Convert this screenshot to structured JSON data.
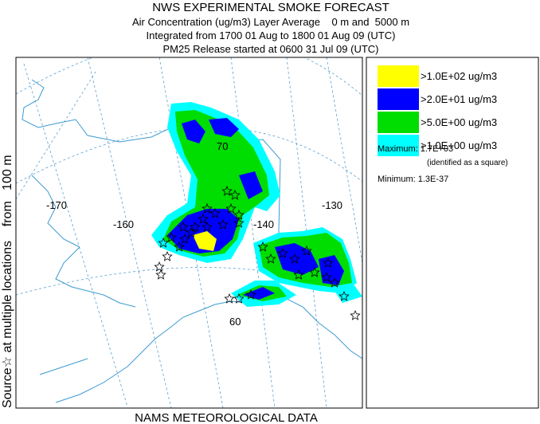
{
  "header": {
    "title": "NWS EXPERIMENTAL SMOKE FORECAST",
    "lines": [
      "Air Concentration (ug/m3) Layer Average    0 m and  5000 m",
      "Integrated from 1700 01 Aug to 1800 01 Aug 09 (UTC)",
      "PM25 Release started at 0600 31 Jul 09 (UTC)"
    ]
  },
  "side_label": "Source☆ at multiple locations    from   100 m",
  "footer": "NAMS METEOROLOGICAL DATA",
  "map": {
    "labels": [
      "-170",
      "-160",
      "-140",
      "-130",
      "70",
      "60"
    ]
  },
  "legend": {
    "items": [
      {
        "label": ">1.0E+02 ug/m3",
        "color": "#ffff00"
      },
      {
        "label": ">2.0E+01 ug/m3",
        "color": "#0000ff"
      },
      {
        "label": ">5.0E+00 ug/m3",
        "color": "#00dd00"
      },
      {
        "label": ">1.0E+00 ug/m3",
        "color": "#00ffff"
      }
    ],
    "maximum": "Maximum: 1.7E+03",
    "maximum_note": "(identified as a square)",
    "minimum": "Minimum: 1.3E-37"
  }
}
